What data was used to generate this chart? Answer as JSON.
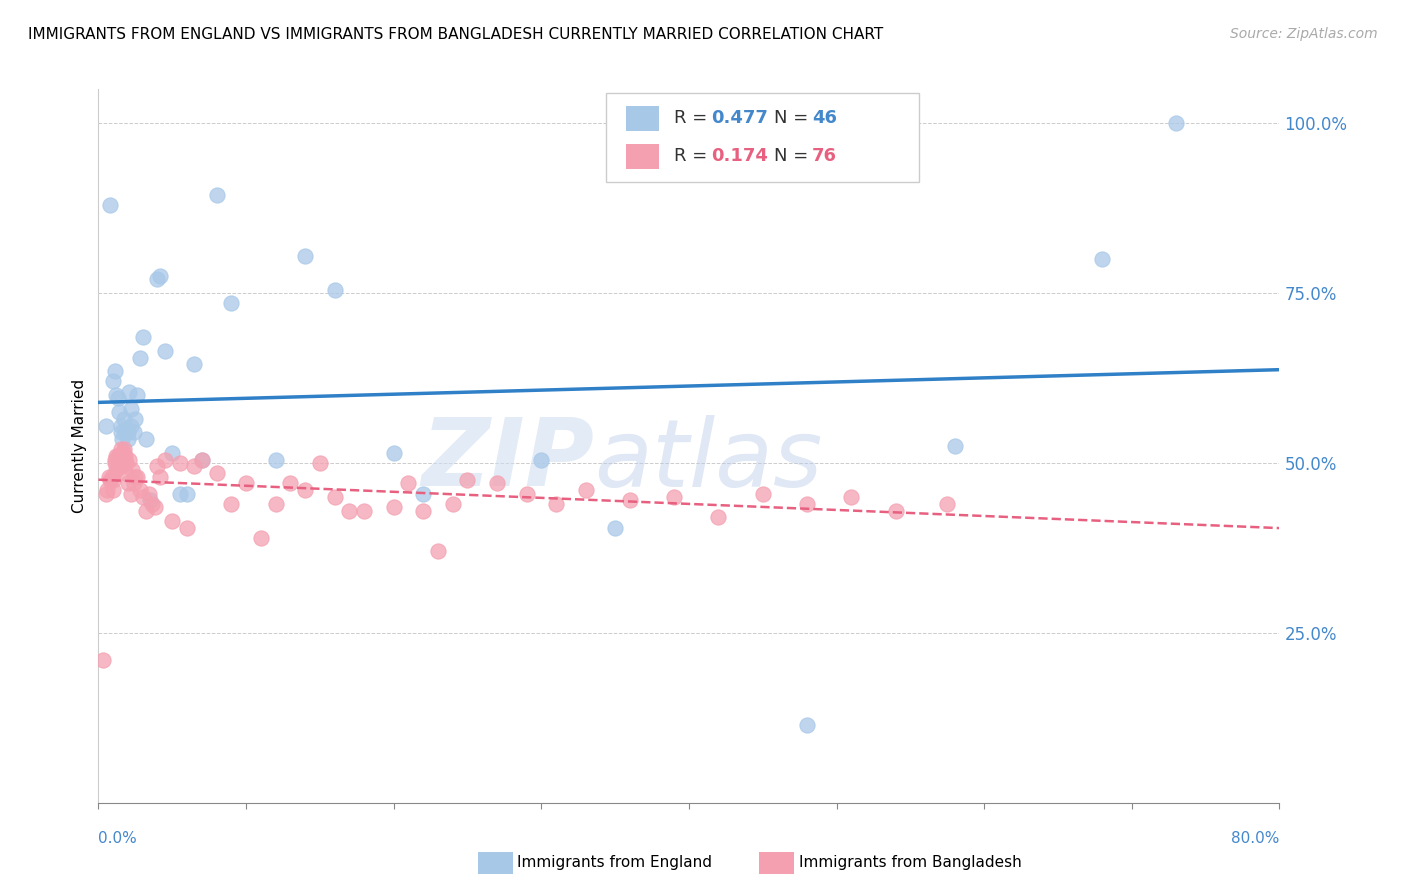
{
  "title": "IMMIGRANTS FROM ENGLAND VS IMMIGRANTS FROM BANGLADESH CURRENTLY MARRIED CORRELATION CHART",
  "source": "Source: ZipAtlas.com",
  "ylabel": "Currently Married",
  "ytick_labels": [
    "25.0%",
    "50.0%",
    "75.0%",
    "100.0%"
  ],
  "ytick_values": [
    0.25,
    0.5,
    0.75,
    1.0
  ],
  "xmin": 0.0,
  "xmax": 0.8,
  "ymin": 0.0,
  "ymax": 1.05,
  "england_color": "#a8c8e8",
  "bangladesh_color": "#f4a0b0",
  "england_line_color": "#3080c8",
  "bangladesh_line_color": "#e86080",
  "england_x": [
    0.005,
    0.008,
    0.01,
    0.011,
    0.012,
    0.013,
    0.014,
    0.015,
    0.015,
    0.016,
    0.017,
    0.018,
    0.019,
    0.02,
    0.02,
    0.021,
    0.022,
    0.022,
    0.024,
    0.025,
    0.026,
    0.028,
    0.03,
    0.032,
    0.035,
    0.04,
    0.042,
    0.045,
    0.05,
    0.055,
    0.06,
    0.065,
    0.07,
    0.08,
    0.09,
    0.12,
    0.14,
    0.16,
    0.2,
    0.22,
    0.3,
    0.35,
    0.48,
    0.58,
    0.68,
    0.73
  ],
  "england_y": [
    0.555,
    0.88,
    0.62,
    0.635,
    0.6,
    0.595,
    0.575,
    0.555,
    0.545,
    0.535,
    0.565,
    0.545,
    0.55,
    0.545,
    0.535,
    0.605,
    0.555,
    0.58,
    0.545,
    0.565,
    0.6,
    0.655,
    0.685,
    0.535,
    0.445,
    0.77,
    0.775,
    0.665,
    0.515,
    0.455,
    0.455,
    0.645,
    0.505,
    0.895,
    0.735,
    0.505,
    0.805,
    0.755,
    0.515,
    0.455,
    0.505,
    0.405,
    0.115,
    0.525,
    0.8,
    1.0
  ],
  "bangladesh_x": [
    0.003,
    0.005,
    0.006,
    0.007,
    0.008,
    0.009,
    0.01,
    0.01,
    0.011,
    0.011,
    0.012,
    0.012,
    0.013,
    0.013,
    0.014,
    0.014,
    0.015,
    0.015,
    0.016,
    0.016,
    0.017,
    0.017,
    0.018,
    0.018,
    0.019,
    0.019,
    0.02,
    0.021,
    0.022,
    0.023,
    0.024,
    0.025,
    0.026,
    0.028,
    0.03,
    0.032,
    0.034,
    0.036,
    0.038,
    0.04,
    0.042,
    0.045,
    0.05,
    0.055,
    0.06,
    0.065,
    0.07,
    0.08,
    0.09,
    0.1,
    0.11,
    0.12,
    0.13,
    0.14,
    0.15,
    0.16,
    0.17,
    0.18,
    0.2,
    0.21,
    0.22,
    0.23,
    0.24,
    0.25,
    0.27,
    0.29,
    0.31,
    0.33,
    0.36,
    0.39,
    0.42,
    0.45,
    0.48,
    0.51,
    0.54,
    0.575
  ],
  "bangladesh_y": [
    0.21,
    0.455,
    0.46,
    0.48,
    0.475,
    0.48,
    0.475,
    0.46,
    0.5,
    0.505,
    0.51,
    0.49,
    0.495,
    0.51,
    0.505,
    0.51,
    0.495,
    0.52,
    0.5,
    0.515,
    0.52,
    0.515,
    0.51,
    0.505,
    0.5,
    0.485,
    0.47,
    0.505,
    0.455,
    0.49,
    0.47,
    0.48,
    0.48,
    0.46,
    0.45,
    0.43,
    0.455,
    0.44,
    0.435,
    0.495,
    0.48,
    0.505,
    0.415,
    0.5,
    0.405,
    0.495,
    0.505,
    0.485,
    0.44,
    0.47,
    0.39,
    0.44,
    0.47,
    0.46,
    0.5,
    0.45,
    0.43,
    0.43,
    0.435,
    0.47,
    0.43,
    0.37,
    0.44,
    0.475,
    0.47,
    0.455,
    0.44,
    0.46,
    0.445,
    0.45,
    0.42,
    0.455,
    0.44,
    0.45,
    0.43,
    0.44
  ],
  "watermark_zip": "ZIP",
  "watermark_atlas": "atlas",
  "legend_R1_val": "0.477",
  "legend_N1_val": "46",
  "legend_R2_val": "0.174",
  "legend_N2_val": "76"
}
